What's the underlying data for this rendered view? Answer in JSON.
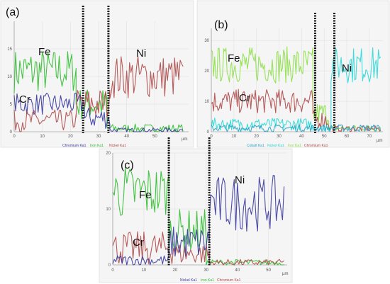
{
  "chart_data": [
    {
      "type": "line",
      "panel_label": "(a)",
      "x_unit": "µm",
      "xlim": [
        0,
        62
      ],
      "ylim": [
        0,
        20
      ],
      "x_ticks": [
        "0",
        "10",
        "20",
        "30",
        "40",
        "50"
      ],
      "x_tick_values": [
        0,
        10,
        20,
        30,
        40,
        50
      ],
      "y_ticks": [
        "0",
        "5",
        "10",
        "15"
      ],
      "y_tick_values": [
        0,
        5,
        10,
        15
      ],
      "boundaries": [
        24.5,
        33.5
      ],
      "legend": [
        {
          "text": "Chromium Ka1",
          "color": "#3a3aa0"
        },
        {
          "text": "Iron Ka1",
          "color": "#2fbf2f"
        },
        {
          "text": "Nickel Ka1",
          "color": "#b04a4a"
        }
      ],
      "annotations": [
        {
          "text": "Fe",
          "x": 5,
          "y": 13
        },
        {
          "text": "Cr",
          "x": 5,
          "y": 5
        },
        {
          "text": "Ni",
          "x": 42,
          "y": 13
        }
      ],
      "series": [
        {
          "color": "#2fbf2f",
          "segments": [
            {
              "x0": 0,
              "x1": 22,
              "mean": 11,
              "amp": 4
            },
            {
              "x0": 22,
              "x1": 33,
              "mean": 5,
              "amp": 3
            },
            {
              "x0": 33,
              "x1": 60,
              "mean": 0.6,
              "amp": 0.8
            }
          ]
        },
        {
          "color": "#3a3aa0",
          "segments": [
            {
              "x0": 0,
              "x1": 25,
              "mean": 5,
              "amp": 2
            },
            {
              "x0": 25,
              "x1": 34,
              "mean": 2.5,
              "amp": 2
            },
            {
              "x0": 34,
              "x1": 60,
              "mean": 0.3,
              "amp": 0.4
            }
          ]
        },
        {
          "color": "#b04a4a",
          "segments": [
            {
              "x0": 0,
              "x1": 22,
              "mean": 2,
              "amp": 2
            },
            {
              "x0": 22,
              "x1": 34,
              "mean": 5,
              "amp": 3
            },
            {
              "x0": 34,
              "x1": 60,
              "mean": 10,
              "amp": 4
            }
          ]
        }
      ]
    },
    {
      "type": "line",
      "panel_label": "(b)",
      "x_unit": "µm",
      "xlim": [
        0,
        76
      ],
      "ylim": [
        0,
        34
      ],
      "x_ticks": [
        "0",
        "10",
        "20",
        "30",
        "40",
        "50",
        "60",
        "70"
      ],
      "x_tick_values": [
        0,
        10,
        20,
        30,
        40,
        50,
        60,
        70
      ],
      "y_ticks": [
        "0",
        "10",
        "20",
        "30"
      ],
      "y_tick_values": [
        0,
        10,
        20,
        30
      ],
      "boundaries": [
        46,
        54.5
      ],
      "legend": [
        {
          "text": "Cobalt Ka1",
          "color": "#2aa6c8"
        },
        {
          "text": "Nickel Ka1",
          "color": "#2fd8d8"
        },
        {
          "text": "Iron Ka1",
          "color": "#8ee04a"
        },
        {
          "text": "Chromium Ka1",
          "color": "#b04a4a"
        }
      ],
      "annotations": [
        {
          "text": "Fe",
          "x": 8,
          "y": 22
        },
        {
          "text": "Cr",
          "x": 12,
          "y": 10
        },
        {
          "text": "Ni",
          "x": 62,
          "y": 18
        }
      ],
      "series": [
        {
          "color": "#8ee04a",
          "segments": [
            {
              "x0": 0,
              "x1": 45,
              "mean": 22,
              "amp": 6
            },
            {
              "x0": 45,
              "x1": 52,
              "mean": 6,
              "amp": 4
            },
            {
              "x0": 52,
              "x1": 75,
              "mean": 1.2,
              "amp": 1
            }
          ]
        },
        {
          "color": "#b04a4a",
          "segments": [
            {
              "x0": 0,
              "x1": 45,
              "mean": 10,
              "amp": 4
            },
            {
              "x0": 45,
              "x1": 52,
              "mean": 4,
              "amp": 3
            },
            {
              "x0": 52,
              "x1": 75,
              "mean": 1,
              "amp": 1
            }
          ]
        },
        {
          "color": "#2fd8d8",
          "segments": [
            {
              "x0": 0,
              "x1": 45,
              "mean": 2.5,
              "amp": 2
            },
            {
              "x0": 45,
              "x1": 53,
              "mean": 1.2,
              "amp": 1
            },
            {
              "x0": 53,
              "x1": 75,
              "mean": 22,
              "amp": 6
            }
          ]
        },
        {
          "color": "#2aa6c8",
          "segments": [
            {
              "x0": 0,
              "x1": 75,
              "mean": 1.2,
              "amp": 1.2
            }
          ]
        }
      ]
    },
    {
      "type": "line",
      "panel_label": "(c)",
      "x_unit": "µm",
      "xlim": [
        0,
        56
      ],
      "ylim": [
        0,
        20
      ],
      "x_ticks": [
        "0",
        "10",
        "20",
        "30",
        "40",
        "50"
      ],
      "x_tick_values": [
        0,
        10,
        20,
        30,
        40,
        50
      ],
      "y_ticks": [
        "0",
        "10",
        "20"
      ],
      "y_tick_values": [
        0,
        10,
        20
      ],
      "boundaries": [
        18,
        31
      ],
      "legend": [
        {
          "text": "Nickel Ka1",
          "color": "#3a3aa0"
        },
        {
          "text": "Iron Ka1",
          "color": "#2fbf2f"
        },
        {
          "text": "Chromium Ka1",
          "color": "#b04a4a"
        }
      ],
      "annotations": [
        {
          "text": "Fe",
          "x": 8,
          "y": 11
        },
        {
          "text": "Cr",
          "x": 6,
          "y": 4.5
        },
        {
          "text": "Ni",
          "x": 37,
          "y": 15.5
        }
      ],
      "series": [
        {
          "color": "#2fbf2f",
          "segments": [
            {
              "x0": 0,
              "x1": 18,
              "mean": 13,
              "amp": 5
            },
            {
              "x0": 18,
              "x1": 30,
              "mean": 6,
              "amp": 4
            },
            {
              "x0": 30,
              "x1": 55,
              "mean": 0.4,
              "amp": 0.6
            }
          ]
        },
        {
          "color": "#b04a4a",
          "segments": [
            {
              "x0": 0,
              "x1": 20,
              "mean": 3,
              "amp": 3
            },
            {
              "x0": 20,
              "x1": 31,
              "mean": 2,
              "amp": 2
            },
            {
              "x0": 31,
              "x1": 55,
              "mean": 0.4,
              "amp": 0.6
            }
          ]
        },
        {
          "color": "#3a3aa0",
          "segments": [
            {
              "x0": 0,
              "x1": 18,
              "mean": 0.8,
              "amp": 1
            },
            {
              "x0": 18,
              "x1": 31,
              "mean": 4,
              "amp": 3
            },
            {
              "x0": 31,
              "x1": 55,
              "mean": 11,
              "amp": 5
            }
          ]
        }
      ]
    }
  ]
}
